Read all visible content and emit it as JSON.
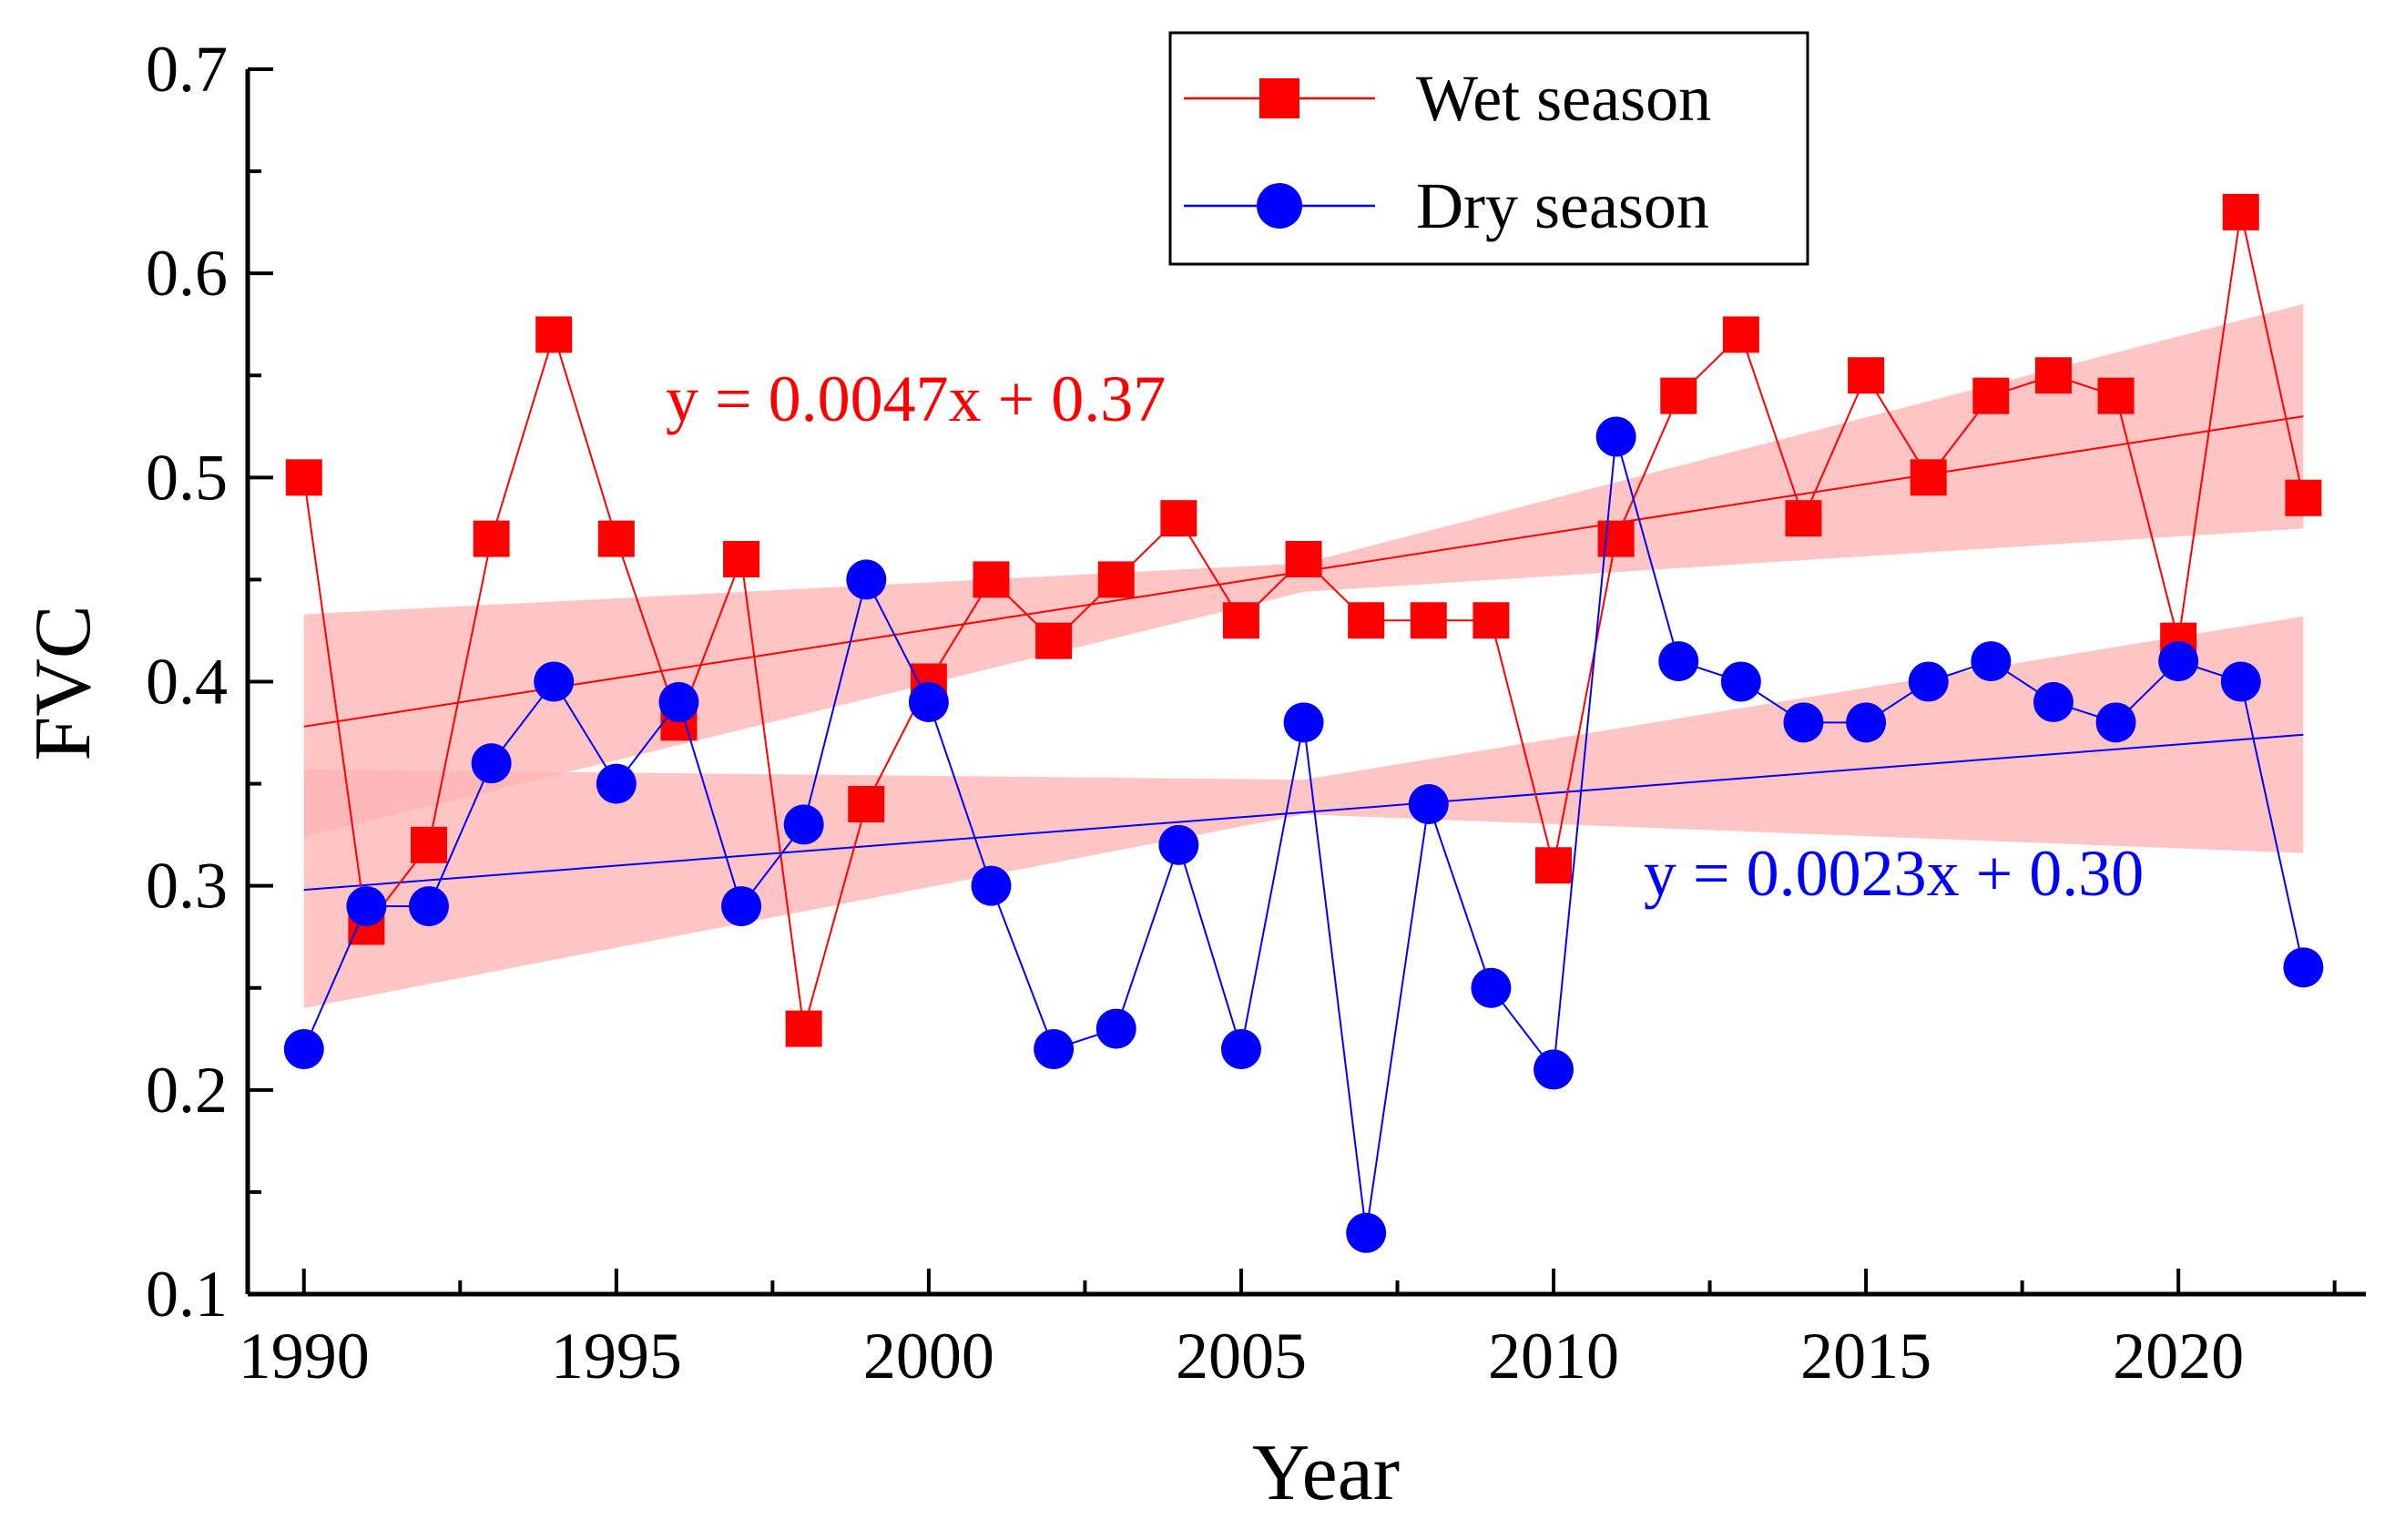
{
  "chart_data": {
    "type": "line",
    "title": "",
    "xlabel": "Year",
    "ylabel": "FVC",
    "xlim": [
      1989.1,
      2023.0
    ],
    "ylim": [
      0.1,
      0.7
    ],
    "xticks": [
      1990,
      1995,
      2000,
      2005,
      2010,
      2015,
      2020
    ],
    "yticks": [
      0.1,
      0.2,
      0.3,
      0.4,
      0.5,
      0.6,
      0.7
    ],
    "x": [
      1990,
      1991,
      1992,
      1993,
      1994,
      1995,
      1996,
      1997,
      1998,
      1999,
      2000,
      2001,
      2002,
      2003,
      2004,
      2005,
      2006,
      2007,
      2008,
      2009,
      2010,
      2011,
      2012,
      2013,
      2014,
      2015,
      2016,
      2017,
      2018,
      2019,
      2020,
      2021,
      2022
    ],
    "series": [
      {
        "name": "Wet season",
        "color": "#ff0000",
        "marker": "square",
        "values": [
          0.5,
          0.28,
          0.32,
          0.47,
          0.57,
          0.47,
          0.38,
          0.46,
          0.23,
          0.34,
          0.4,
          0.45,
          0.42,
          0.45,
          0.48,
          0.43,
          0.46,
          0.43,
          0.43,
          0.43,
          0.31,
          0.47,
          0.54,
          0.57,
          0.48,
          0.55,
          0.5,
          0.54,
          0.55,
          0.54,
          0.42,
          0.63,
          0.49
        ],
        "trend": {
          "equation": "y = 0.0047x + 0.37",
          "start": [
            1990,
            0.378
          ],
          "end": [
            2022,
            0.53
          ],
          "band_lower": [
            [
              1990,
              0.324
            ],
            [
              2006,
              0.444
            ],
            [
              2022,
              0.475
            ]
          ],
          "band_upper": [
            [
              1990,
              0.433
            ],
            [
              2006,
              0.458
            ],
            [
              2022,
              0.585
            ]
          ]
        }
      },
      {
        "name": "Dry season",
        "color": "#0000ff",
        "marker": "circle",
        "values": [
          0.22,
          0.29,
          0.29,
          0.36,
          0.4,
          0.35,
          0.39,
          0.29,
          0.33,
          0.45,
          0.39,
          0.3,
          0.22,
          0.23,
          0.32,
          0.22,
          0.38,
          0.13,
          0.34,
          0.25,
          0.21,
          0.52,
          0.41,
          0.4,
          0.38,
          0.38,
          0.4,
          0.41,
          0.39,
          0.38,
          0.41,
          0.4,
          0.26
        ],
        "trend": {
          "equation": "y = 0.0023x + 0.30",
          "start": [
            1990,
            0.298
          ],
          "end": [
            2022,
            0.374
          ],
          "band_lower": [
            [
              1990,
              0.24
            ],
            [
              2006,
              0.335
            ],
            [
              2022,
              0.316
            ]
          ],
          "band_upper": [
            [
              1990,
              0.357
            ],
            [
              2006,
              0.352
            ],
            [
              2022,
              0.432
            ]
          ]
        }
      }
    ],
    "band_color": "#ffb3b3",
    "legend_position": "top-right"
  }
}
